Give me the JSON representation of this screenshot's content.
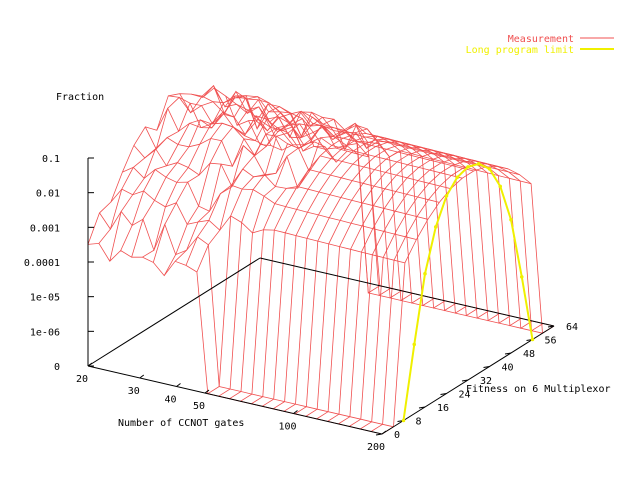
{
  "chart_data": {
    "type": "surface3d",
    "zlabel": "Fraction",
    "xlabel": "Number of CCNOT gates",
    "ylabel": "Fitness on 6 Multiplexor",
    "z_scale": "log",
    "z_ticks": [
      "0",
      "1e-06",
      "1e-05",
      "0.0001",
      "0.001",
      "0.01",
      "0.1"
    ],
    "x_ticks": [
      "20",
      "30",
      "40",
      "50",
      "100",
      "200"
    ],
    "y_ticks": [
      "0",
      "8",
      "16",
      "24",
      "32",
      "40",
      "48",
      "56",
      "64"
    ],
    "xlim": [
      20,
      200
    ],
    "ylim": [
      0,
      64
    ],
    "legend_position": "top-right",
    "series": [
      {
        "name": "Measurement",
        "color": "#f05050"
      },
      {
        "name": "Long program limit",
        "color": "#f0f000"
      }
    ],
    "limit_curve": {
      "x": 200,
      "y": [
        8,
        12,
        16,
        20,
        24,
        28,
        32,
        36,
        40,
        44,
        48,
        52,
        56
      ],
      "z": [
        0,
        1e-05,
        0.0007,
        0.01,
        0.05,
        0.11,
        0.14,
        0.11,
        0.05,
        0.01,
        0.0007,
        1e-05,
        0
      ]
    }
  }
}
